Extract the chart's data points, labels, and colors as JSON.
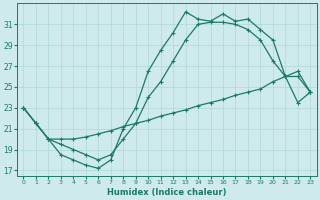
{
  "xlabel": "Humidex (Indice chaleur)",
  "bg_color": "#ceeaea",
  "line_color": "#1a7a6a",
  "grid_color": "#b0d8d8",
  "ylim": [
    16.5,
    33.0
  ],
  "xlim": [
    -0.5,
    23.5
  ],
  "yticks": [
    17,
    19,
    21,
    23,
    25,
    27,
    29,
    31
  ],
  "xticks": [
    0,
    1,
    2,
    3,
    4,
    5,
    6,
    7,
    8,
    9,
    10,
    11,
    12,
    13,
    14,
    15,
    16,
    17,
    18,
    19,
    20,
    21,
    22,
    23
  ],
  "line1_x": [
    0,
    1,
    2,
    3,
    4,
    5,
    6,
    7,
    8,
    9,
    10,
    11,
    12,
    13,
    14,
    15,
    16,
    17,
    18,
    19,
    20,
    21,
    22,
    23
  ],
  "line1_y": [
    23.0,
    21.5,
    20.0,
    18.5,
    18.0,
    17.5,
    17.2,
    18.0,
    21.0,
    23.0,
    26.5,
    28.5,
    30.2,
    32.2,
    31.5,
    31.3,
    32.0,
    31.3,
    31.5,
    30.5,
    29.5,
    26.0,
    23.5,
    24.5
  ],
  "line2_x": [
    0,
    1,
    2,
    3,
    4,
    5,
    6,
    7,
    8,
    9,
    10,
    11,
    12,
    13,
    14,
    15,
    16,
    17,
    18,
    19,
    20,
    21,
    22,
    23
  ],
  "line2_y": [
    23.0,
    21.5,
    20.0,
    19.5,
    19.0,
    18.5,
    18.0,
    18.5,
    20.0,
    21.5,
    24.0,
    25.5,
    27.5,
    29.5,
    31.0,
    31.2,
    31.2,
    31.0,
    30.5,
    29.5,
    27.5,
    26.0,
    26.0,
    24.5
  ],
  "line3_x": [
    0,
    1,
    2,
    3,
    4,
    5,
    6,
    7,
    8,
    9,
    10,
    11,
    12,
    13,
    14,
    15,
    16,
    17,
    18,
    19,
    20,
    21,
    22,
    23
  ],
  "line3_y": [
    23.0,
    21.5,
    20.0,
    20.0,
    20.0,
    20.2,
    20.5,
    20.8,
    21.2,
    21.5,
    21.8,
    22.2,
    22.5,
    22.8,
    23.2,
    23.5,
    23.8,
    24.2,
    24.5,
    24.8,
    25.5,
    26.0,
    26.5,
    24.5
  ]
}
